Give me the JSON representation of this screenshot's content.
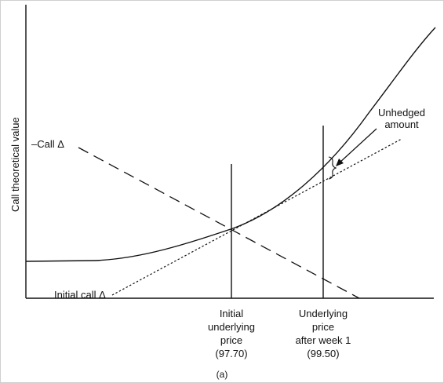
{
  "figure": {
    "y_axis_label": "Call theoretical value",
    "curve_labels": {
      "neg_call_delta": "–Call Δ",
      "initial_call_delta": "Initial call Δ",
      "unhedged_amount_line1": "Unhedged",
      "unhedged_amount_line2": "amount"
    },
    "x_markers": [
      {
        "lines": [
          "Initial",
          "underlying",
          "price",
          "(97.70)"
        ]
      },
      {
        "lines": [
          "Underlying",
          "price",
          "after week 1",
          "(99.50)"
        ]
      }
    ],
    "panel_label": "(a)"
  }
}
